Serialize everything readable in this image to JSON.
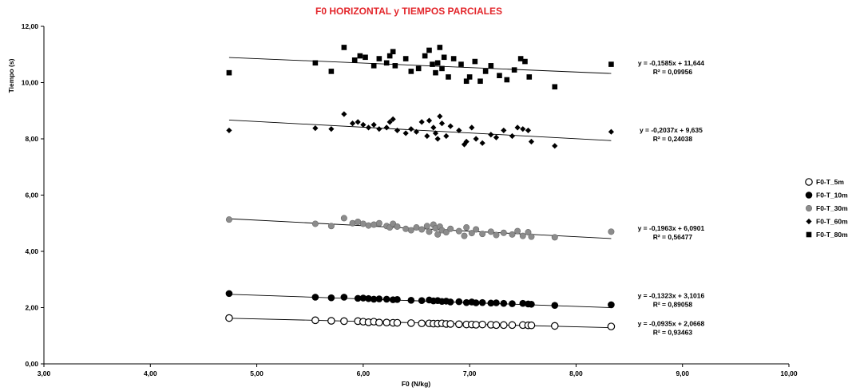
{
  "chart_data": {
    "type": "scatter",
    "title": "F0 HORIZONTAL y TIEMPOS PARCIALES",
    "xlabel": "F0 (N/kg)",
    "ylabel": "Tiempo (s)",
    "xlim": [
      3,
      10
    ],
    "ylim": [
      0,
      12
    ],
    "x_ticks": [
      "3,00",
      "4,00",
      "5,00",
      "6,00",
      "7,00",
      "8,00",
      "9,00",
      "10,00"
    ],
    "y_ticks": [
      "0,00",
      "2,00",
      "4,00",
      "6,00",
      "8,00",
      "10,00",
      "12,00"
    ],
    "grid": false,
    "legend_position": "right",
    "series": [
      {
        "name": "F0-T_5m",
        "marker": "open-circle",
        "color": "#000000",
        "slope": -0.0935,
        "intercept": 2.0668,
        "equation": "y = -0,0935x + 2,0668",
        "r2": "R² = 0,93463",
        "x": [
          4.74,
          5.55,
          5.7,
          5.82,
          5.95,
          6.0,
          6.05,
          6.1,
          6.15,
          6.22,
          6.28,
          6.32,
          6.45,
          6.55,
          6.62,
          6.66,
          6.7,
          6.74,
          6.78,
          6.82,
          6.9,
          6.97,
          7.02,
          7.06,
          7.12,
          7.2,
          7.25,
          7.32,
          7.4,
          7.5,
          7.55,
          7.58,
          7.8,
          8.33
        ],
        "y": [
          1.63,
          1.55,
          1.53,
          1.52,
          1.52,
          1.5,
          1.48,
          1.5,
          1.47,
          1.47,
          1.46,
          1.46,
          1.45,
          1.44,
          1.44,
          1.43,
          1.43,
          1.44,
          1.42,
          1.42,
          1.41,
          1.4,
          1.4,
          1.39,
          1.4,
          1.39,
          1.38,
          1.38,
          1.38,
          1.38,
          1.37,
          1.37,
          1.35,
          1.33
        ]
      },
      {
        "name": "F0-T_10m",
        "marker": "filled-circle",
        "color": "#000000",
        "slope": -0.1323,
        "intercept": 3.1016,
        "equation": "y = -0,1323x + 3,1016",
        "r2": "R² = 0,89058",
        "x": [
          4.74,
          5.55,
          5.7,
          5.82,
          5.95,
          6.0,
          6.05,
          6.1,
          6.15,
          6.22,
          6.28,
          6.32,
          6.45,
          6.55,
          6.62,
          6.66,
          6.7,
          6.74,
          6.78,
          6.82,
          6.9,
          6.97,
          7.02,
          7.06,
          7.12,
          7.2,
          7.25,
          7.32,
          7.4,
          7.5,
          7.55,
          7.58,
          7.8,
          8.33
        ],
        "y": [
          2.5,
          2.37,
          2.35,
          2.37,
          2.33,
          2.34,
          2.32,
          2.3,
          2.31,
          2.3,
          2.28,
          2.29,
          2.26,
          2.25,
          2.27,
          2.24,
          2.25,
          2.22,
          2.23,
          2.2,
          2.21,
          2.18,
          2.2,
          2.17,
          2.18,
          2.16,
          2.17,
          2.15,
          2.14,
          2.15,
          2.13,
          2.12,
          2.08,
          2.1
        ]
      },
      {
        "name": "F0-T_30m",
        "marker": "gray-circle",
        "color": "#8c8c8c",
        "slope": -0.1963,
        "intercept": 6.0901,
        "equation": "y = -0,1963x + 6,0901",
        "r2": "R² = 0,56477",
        "x": [
          4.74,
          5.55,
          5.7,
          5.82,
          5.9,
          5.95,
          6.0,
          6.05,
          6.1,
          6.15,
          6.22,
          6.25,
          6.28,
          6.32,
          6.4,
          6.45,
          6.5,
          6.55,
          6.6,
          6.62,
          6.66,
          6.68,
          6.7,
          6.72,
          6.74,
          6.78,
          6.82,
          6.9,
          6.95,
          6.97,
          7.02,
          7.06,
          7.12,
          7.2,
          7.25,
          7.32,
          7.4,
          7.45,
          7.5,
          7.55,
          7.58,
          7.8,
          8.33
        ],
        "y": [
          5.13,
          4.98,
          4.9,
          5.18,
          5.0,
          5.05,
          4.98,
          4.92,
          4.95,
          5.0,
          4.9,
          4.85,
          4.98,
          4.88,
          4.8,
          4.75,
          4.85,
          4.78,
          4.9,
          4.7,
          4.95,
          4.82,
          4.6,
          4.88,
          4.75,
          4.68,
          4.8,
          4.72,
          4.55,
          4.85,
          4.65,
          4.78,
          4.62,
          4.7,
          4.58,
          4.66,
          4.6,
          4.72,
          4.55,
          4.68,
          4.52,
          4.5,
          4.7
        ]
      },
      {
        "name": "F0-T_60m",
        "marker": "diamond",
        "color": "#000000",
        "slope": -0.2037,
        "intercept": 9.635,
        "equation": "y = -0,2037x + 9,635",
        "r2": "R² = 0,24038",
        "x": [
          4.74,
          5.55,
          5.7,
          5.82,
          5.9,
          5.95,
          6.0,
          6.05,
          6.1,
          6.15,
          6.22,
          6.25,
          6.28,
          6.32,
          6.4,
          6.45,
          6.5,
          6.55,
          6.6,
          6.62,
          6.66,
          6.68,
          6.7,
          6.72,
          6.74,
          6.78,
          6.82,
          6.9,
          6.95,
          6.97,
          7.02,
          7.06,
          7.12,
          7.2,
          7.25,
          7.32,
          7.4,
          7.45,
          7.5,
          7.55,
          7.58,
          7.8,
          8.33
        ],
        "y": [
          8.3,
          8.38,
          8.35,
          8.88,
          8.55,
          8.6,
          8.5,
          8.4,
          8.5,
          8.35,
          8.4,
          8.6,
          8.7,
          8.3,
          8.2,
          8.35,
          8.25,
          8.6,
          8.1,
          8.65,
          8.4,
          8.2,
          8.0,
          8.8,
          8.55,
          8.1,
          8.45,
          8.3,
          7.8,
          7.9,
          8.4,
          8.0,
          7.85,
          8.15,
          8.05,
          8.3,
          8.1,
          8.4,
          8.35,
          8.3,
          7.9,
          7.75,
          8.25
        ]
      },
      {
        "name": "F0-T_80m",
        "marker": "square",
        "color": "#000000",
        "slope": -0.1585,
        "intercept": 11.644,
        "equation": "y = -0,1585x + 11,644",
        "r2": "R² = 0,09956",
        "x": [
          4.74,
          5.55,
          5.7,
          5.82,
          5.92,
          5.97,
          6.02,
          6.1,
          6.15,
          6.22,
          6.25,
          6.28,
          6.3,
          6.4,
          6.45,
          6.52,
          6.58,
          6.62,
          6.65,
          6.68,
          6.7,
          6.72,
          6.74,
          6.76,
          6.8,
          6.85,
          6.92,
          6.97,
          7.0,
          7.05,
          7.1,
          7.15,
          7.2,
          7.28,
          7.35,
          7.42,
          7.48,
          7.52,
          7.56,
          7.8,
          8.33
        ],
        "y": [
          10.35,
          10.7,
          10.4,
          11.25,
          10.8,
          10.95,
          10.9,
          10.6,
          10.85,
          10.7,
          10.95,
          11.1,
          10.6,
          10.85,
          10.4,
          10.5,
          10.95,
          11.15,
          10.65,
          10.35,
          10.7,
          11.25,
          10.5,
          10.9,
          10.2,
          10.85,
          10.65,
          10.05,
          10.2,
          10.75,
          10.05,
          10.4,
          10.6,
          10.25,
          10.1,
          10.45,
          10.85,
          10.75,
          10.2,
          9.85,
          10.65
        ]
      }
    ]
  }
}
